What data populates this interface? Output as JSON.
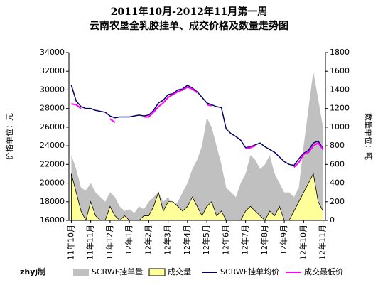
{
  "chart_data": {
    "type": "combo",
    "title": "2011年10月-2012年11月第一周",
    "subtitle": "云南农垦全乳胶挂单、成交价格及数量走势图",
    "ylabel": "价格单位：元",
    "y2label": "数量单位：吨",
    "credit": "zhyj制",
    "categories": [
      "11年10月",
      null,
      null,
      null,
      "11年11月",
      null,
      null,
      null,
      "11年12月",
      null,
      null,
      null,
      "12年1月",
      null,
      null,
      null,
      "12年2月",
      null,
      null,
      null,
      "12年3月",
      null,
      null,
      null,
      "12年4月",
      null,
      null,
      null,
      "12年5月",
      null,
      null,
      null,
      "12年6月",
      null,
      null,
      null,
      "12年7月",
      null,
      null,
      null,
      "12年8月",
      null,
      null,
      null,
      "12年9月",
      null,
      null,
      null,
      "12年10月",
      null,
      null,
      null,
      "12年11月"
    ],
    "ylim": [
      16000,
      34000
    ],
    "yticks": [
      16000,
      18000,
      20000,
      22000,
      24000,
      26000,
      28000,
      30000,
      32000,
      34000
    ],
    "y2lim": [
      0,
      1800
    ],
    "y2ticks": [
      0,
      200,
      400,
      600,
      800,
      1000,
      1200,
      1400,
      1600,
      1800
    ],
    "series": [
      {
        "name": "SCRWF挂单量",
        "kind": "area",
        "axis": "y2",
        "color": "#c0c0c0",
        "values": [
          700,
          550,
          350,
          320,
          400,
          300,
          250,
          200,
          300,
          250,
          150,
          100,
          120,
          80,
          150,
          120,
          200,
          250,
          300,
          200,
          250,
          150,
          200,
          300,
          400,
          550,
          650,
          800,
          1100,
          1000,
          800,
          600,
          350,
          300,
          250,
          400,
          500,
          700,
          650,
          550,
          600,
          700,
          500,
          400,
          300,
          300,
          250,
          350,
          800,
          1200,
          1600,
          1300,
          1000
        ]
      },
      {
        "name": "成交量",
        "kind": "area",
        "axis": "y2",
        "color": "#ffff99",
        "values": [
          500,
          300,
          100,
          0,
          200,
          50,
          0,
          0,
          150,
          50,
          0,
          50,
          0,
          0,
          0,
          50,
          50,
          150,
          300,
          100,
          200,
          200,
          150,
          100,
          150,
          250,
          150,
          50,
          150,
          200,
          50,
          100,
          0,
          0,
          0,
          0,
          100,
          150,
          100,
          50,
          0,
          100,
          50,
          150,
          0,
          0,
          100,
          200,
          300,
          400,
          500,
          200,
          100
        ]
      },
      {
        "name": "SCRWF挂单均价",
        "kind": "line",
        "color": "#000066",
        "values": [
          30500,
          28800,
          28200,
          28000,
          28000,
          27800,
          27700,
          27600,
          27200,
          27000,
          27100,
          27100,
          27100,
          27200,
          27300,
          27200,
          27300,
          27800,
          28600,
          28900,
          29500,
          29600,
          30000,
          30100,
          30500,
          30200,
          29800,
          29200,
          28600,
          28400,
          28200,
          28100,
          25800,
          25300,
          25000,
          24600,
          23800,
          23900,
          24100,
          24300,
          23900,
          23600,
          23300,
          22800,
          22300,
          22000,
          21900,
          22600,
          23200,
          23500,
          24300,
          24500,
          23700
        ]
      },
      {
        "name": "成交最低价",
        "kind": "line",
        "color": "#ff00ff",
        "values": [
          28500,
          28400,
          28000,
          null,
          27800,
          null,
          27600,
          null,
          26900,
          26500,
          null,
          27000,
          null,
          null,
          null,
          27100,
          27100,
          27600,
          28200,
          28600,
          29200,
          29500,
          29800,
          30000,
          30300,
          30100,
          29700,
          null,
          28400,
          28300,
          null,
          28000,
          null,
          null,
          null,
          null,
          23700,
          23800,
          24000,
          null,
          null,
          23500,
          null,
          22600,
          null,
          null,
          21700,
          22200,
          23100,
          23300,
          24000,
          24300,
          23600
        ]
      }
    ]
  }
}
